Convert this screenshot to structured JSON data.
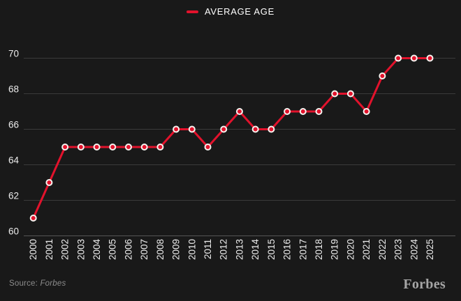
{
  "legend": {
    "label": "AVERAGE AGE"
  },
  "footer": {
    "source_prefix": "Source:",
    "source_name": "Forbes",
    "brand": "Forbes"
  },
  "colors": {
    "background": "#191919",
    "line": "#e2122c",
    "marker_fill": "#e2122c",
    "marker_ring": "#f5f3ef",
    "grid": "#3b3b3b",
    "baseline": "#565656",
    "axis_text": "#ececec",
    "muted_text": "#8c8c8c",
    "brand_text": "#a6a6a6"
  },
  "chart_data": {
    "type": "line",
    "title": "",
    "xlabel": "",
    "ylabel": "",
    "categories": [
      "2000",
      "2001",
      "2002",
      "2003",
      "2004",
      "2005",
      "2006",
      "2007",
      "2008",
      "2009",
      "2010",
      "2011",
      "2012",
      "2013",
      "2014",
      "2015",
      "2016",
      "2017",
      "2018",
      "2019",
      "2020",
      "2021",
      "2022",
      "2023",
      "2024",
      "2025"
    ],
    "series": [
      {
        "name": "AVERAGE AGE",
        "values": [
          61,
          63,
          65,
          65,
          65,
          65,
          65,
          65,
          65,
          66,
          66,
          65,
          66,
          67,
          66,
          66,
          67,
          67,
          67,
          68,
          68,
          67,
          69,
          70,
          70,
          70
        ]
      }
    ],
    "ylim": [
      60,
      70
    ],
    "yticks": [
      60,
      62,
      64,
      66,
      68,
      70
    ],
    "grid": "horizontal",
    "legend_position": "top center",
    "marker": "circle"
  }
}
